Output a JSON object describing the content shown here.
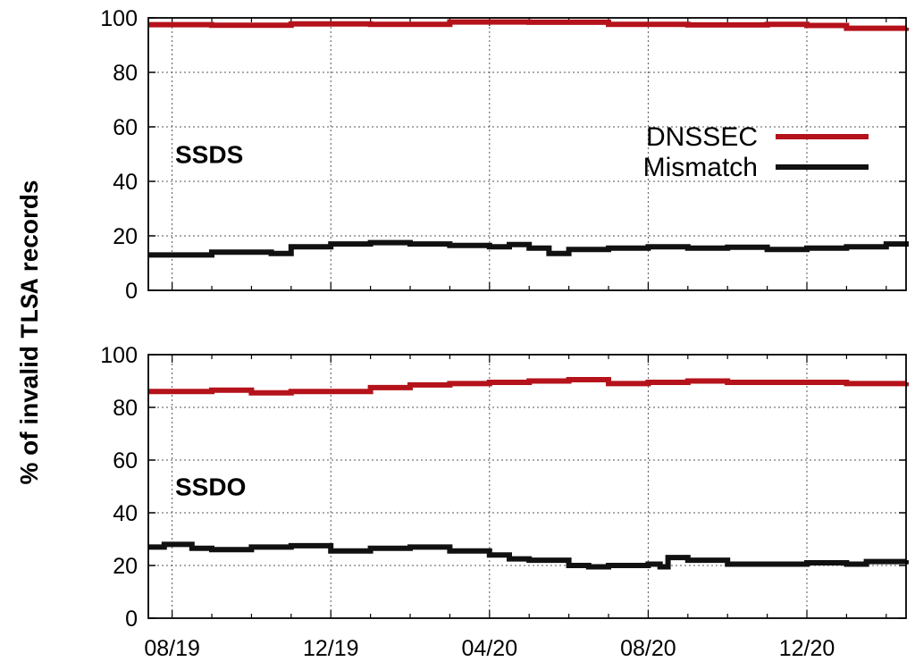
{
  "ylabel": {
    "prefix": "% of invalid ",
    "mono": "TLSA",
    "suffix": " records"
  },
  "colors": {
    "DNSSEC": "#b5121b",
    "Mismatch": "#111111"
  },
  "chart_data": [
    {
      "type": "line",
      "panel_label": "SSDS",
      "x_ticks": [
        "08/19",
        "12/19",
        "04/20",
        "08/20",
        "12/20"
      ],
      "x_tick_months": [
        7,
        11,
        15,
        19,
        23
      ],
      "xlim_months": [
        6.4,
        25.5
      ],
      "ylim": [
        0,
        100
      ],
      "y_ticks": [
        0,
        20,
        40,
        60,
        80,
        100
      ],
      "grid": true,
      "legend": {
        "position": "top-right",
        "entries": [
          "DNSSEC",
          "Mismatch"
        ]
      },
      "series": [
        {
          "name": "DNSSEC",
          "x_months": [
            6.4,
            8,
            10,
            12,
            14,
            16,
            18,
            20,
            22,
            23,
            24,
            25.5
          ],
          "values": [
            97.5,
            97.3,
            97.8,
            97.6,
            98.5,
            98.4,
            97.6,
            97.4,
            97.6,
            97.2,
            96.2,
            96.4
          ]
        },
        {
          "name": "Mismatch",
          "x_months": [
            6.4,
            7,
            8,
            9,
            9.5,
            10,
            11,
            12,
            13,
            14,
            15,
            15.5,
            16,
            16.5,
            17,
            18,
            19,
            20,
            21,
            22,
            23,
            24,
            25,
            25.5
          ],
          "values": [
            13,
            13,
            14,
            14,
            13.5,
            16,
            17,
            17.5,
            17,
            16.5,
            16,
            16.8,
            15.5,
            13.5,
            15,
            15.5,
            16,
            15.5,
            15.8,
            15,
            15.5,
            16,
            17,
            18
          ]
        }
      ]
    },
    {
      "type": "line",
      "panel_label": "SSDO",
      "x_ticks": [
        "08/19",
        "12/19",
        "04/20",
        "08/20",
        "12/20"
      ],
      "x_tick_months": [
        7,
        11,
        15,
        19,
        23
      ],
      "xlim_months": [
        6.4,
        25.5
      ],
      "ylim": [
        0,
        100
      ],
      "y_ticks": [
        0,
        20,
        40,
        60,
        80,
        100
      ],
      "grid": true,
      "series": [
        {
          "name": "DNSSEC",
          "x_months": [
            6.4,
            7,
            8,
            9,
            10,
            11,
            12,
            13,
            14,
            15,
            16,
            17,
            18,
            19,
            20,
            21,
            22,
            23,
            24,
            25,
            25.5
          ],
          "values": [
            86,
            86,
            86.5,
            85.5,
            86,
            86,
            87.5,
            88.5,
            89,
            89.5,
            90,
            90.5,
            89,
            89.5,
            90,
            89.5,
            89.5,
            89.5,
            89,
            89,
            89.5
          ]
        },
        {
          "name": "Mismatch",
          "x_months": [
            6.4,
            6.8,
            7.5,
            8,
            9,
            10,
            11,
            12,
            13,
            14,
            15,
            15.5,
            16,
            17,
            17.5,
            18,
            19,
            19.3,
            19.5,
            20,
            21,
            22,
            23,
            24,
            24.5,
            25,
            25.5
          ],
          "values": [
            27,
            28,
            26.5,
            26,
            27,
            27.5,
            25.5,
            26.5,
            27,
            25.5,
            24,
            22.5,
            22,
            20,
            19.5,
            20,
            20.5,
            19.5,
            23,
            22,
            20.5,
            20.5,
            21,
            20.5,
            21.5,
            21.5,
            22
          ]
        }
      ]
    }
  ]
}
